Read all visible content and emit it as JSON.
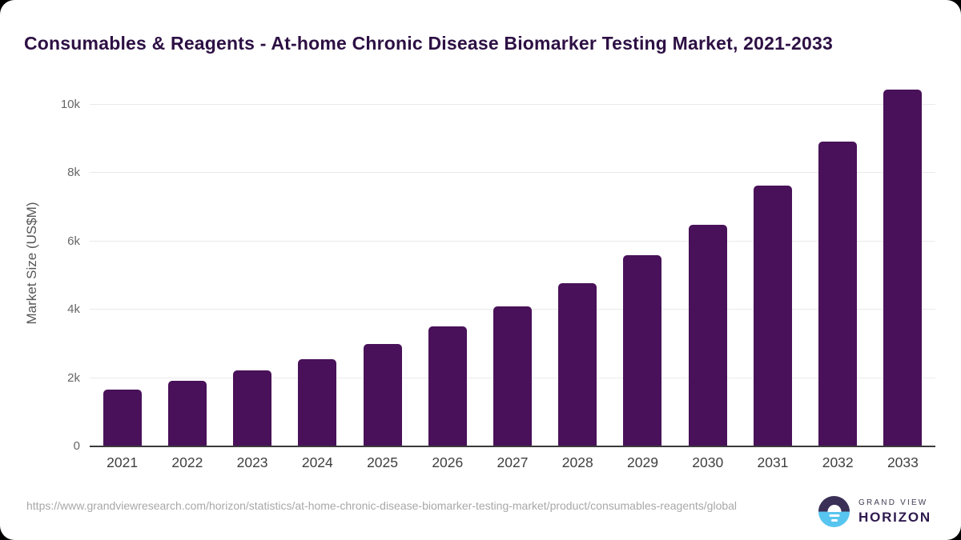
{
  "page": {
    "title": "Consumables & Reagents - At-home Chronic Disease Biomarker Testing Market, 2021-2033"
  },
  "chart_data": {
    "type": "bar",
    "title": "Consumables & Reagents - At-home Chronic Disease Biomarker Testing Market, 2021-2033",
    "xlabel": "",
    "ylabel": "Market Size (US$M)",
    "categories": [
      "2021",
      "2022",
      "2023",
      "2024",
      "2025",
      "2026",
      "2027",
      "2028",
      "2029",
      "2030",
      "2031",
      "2032",
      "2033"
    ],
    "values": [
      1670,
      1910,
      2220,
      2560,
      2990,
      3500,
      4090,
      4770,
      5590,
      6490,
      7630,
      8920,
      10440
    ],
    "unit": "US$M",
    "ylim": [
      0,
      10700
    ],
    "yticks": [
      {
        "value": 0,
        "label": "0"
      },
      {
        "value": 2000,
        "label": "2k"
      },
      {
        "value": 4000,
        "label": "4k"
      },
      {
        "value": 6000,
        "label": "6k"
      },
      {
        "value": 8000,
        "label": "8k"
      },
      {
        "value": 10000,
        "label": "10k"
      }
    ],
    "grid": true,
    "legend": false,
    "bar_color": "#491159"
  },
  "footer": {
    "source_url": "https://www.grandviewresearch.com/horizon/statistics/at-home-chronic-disease-biomarker-testing-market/product/consumables-reagents/global",
    "brand": {
      "name_top": "GRAND VIEW",
      "name_bottom": "HORIZON"
    }
  },
  "colors": {
    "bar": "#491159",
    "title": "#2d1044",
    "gridline": "#eaeaea",
    "axis_line": "#3a3a3a",
    "logo_dark": "#3a2f56",
    "logo_blue": "#58c5f0"
  }
}
